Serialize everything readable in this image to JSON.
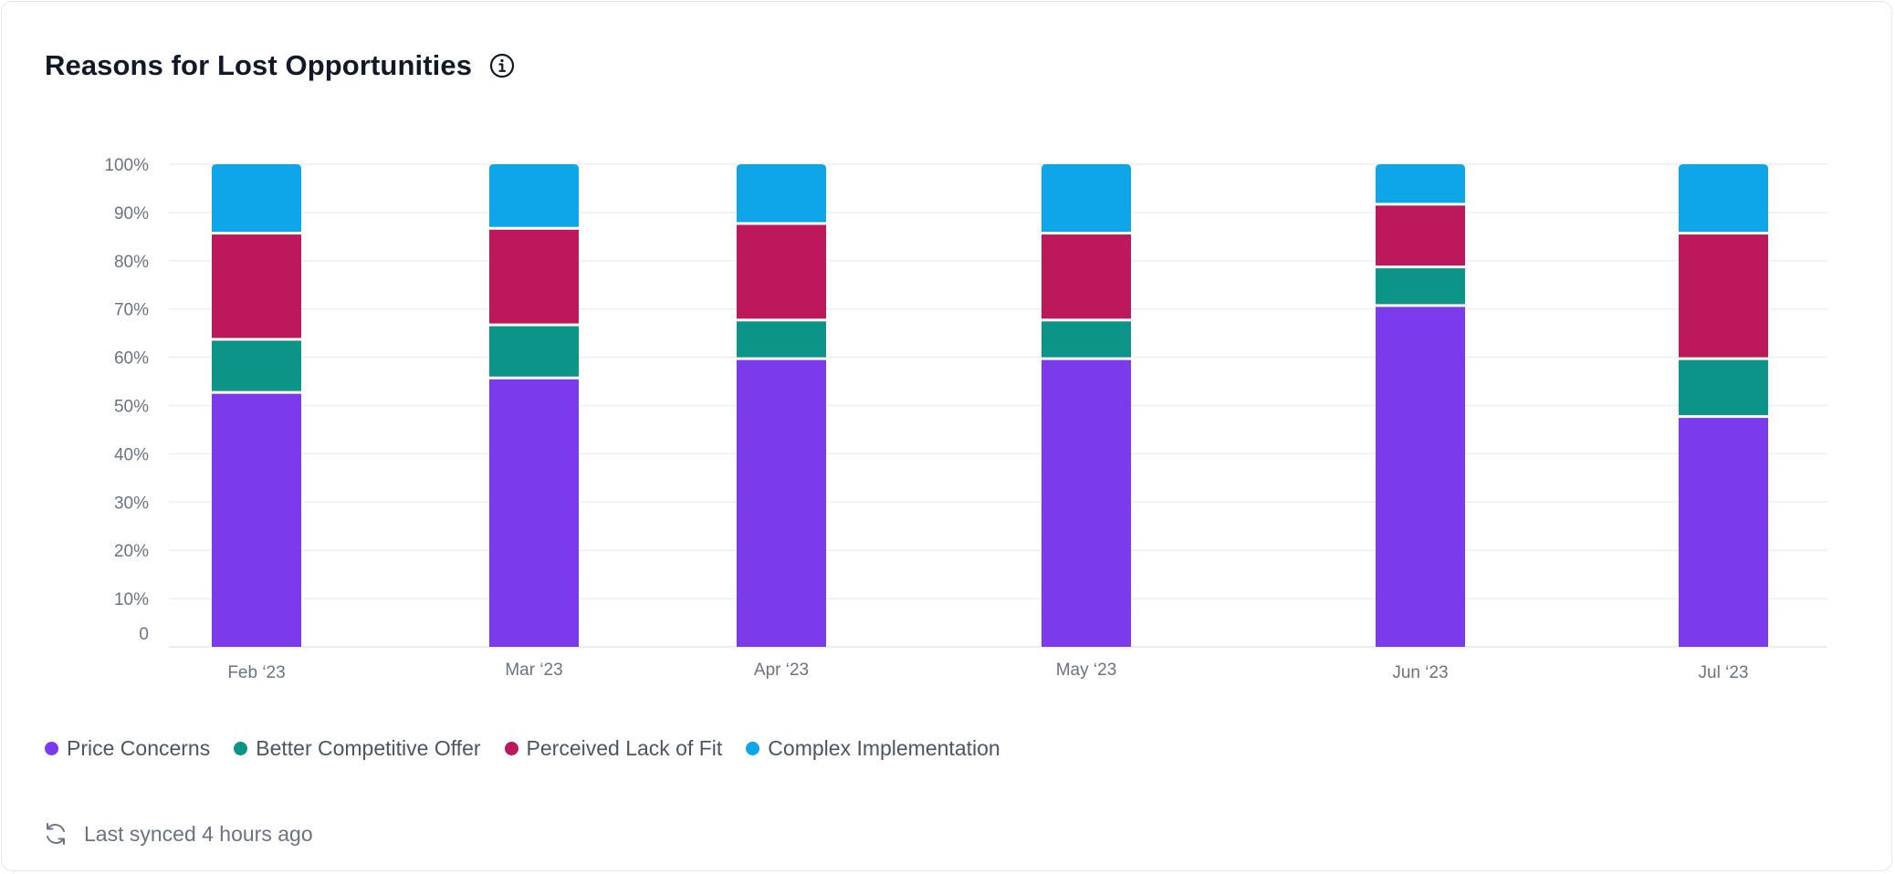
{
  "card": {
    "title": "Reasons for Lost Opportunities",
    "info_icon": "info-circle-icon"
  },
  "chart_data": {
    "type": "bar",
    "stacked": true,
    "categories": [
      "Feb ‘23",
      "Mar ‘23",
      "Apr ‘23",
      "May ‘23",
      "Jun ‘23",
      "Jul ‘23"
    ],
    "series": [
      {
        "name": "Price Concerns",
        "color": "#7c3aed",
        "values": [
          53,
          56,
          60,
          60,
          71,
          48
        ]
      },
      {
        "name": "Better Competitive Offer",
        "color": "#0d9488",
        "values": [
          11,
          11,
          8,
          8,
          8,
          12
        ]
      },
      {
        "name": "Perceived Lack of Fit",
        "color": "#be185d",
        "values": [
          22,
          20,
          20,
          18,
          13,
          26
        ]
      },
      {
        "name": "Complex Implementation",
        "color": "#0ea5e9",
        "values": [
          14,
          13,
          12,
          14,
          8,
          14
        ]
      }
    ],
    "y_ticks": [
      "0",
      "10%",
      "20%",
      "30%",
      "40%",
      "50%",
      "60%",
      "70%",
      "80%",
      "90%",
      "100%"
    ],
    "ylim": [
      0,
      100
    ],
    "grid": true,
    "legend_position": "bottom-left"
  },
  "footer": {
    "sync_icon": "refresh-icon",
    "sync_text": "Last synced 4 hours ago"
  }
}
